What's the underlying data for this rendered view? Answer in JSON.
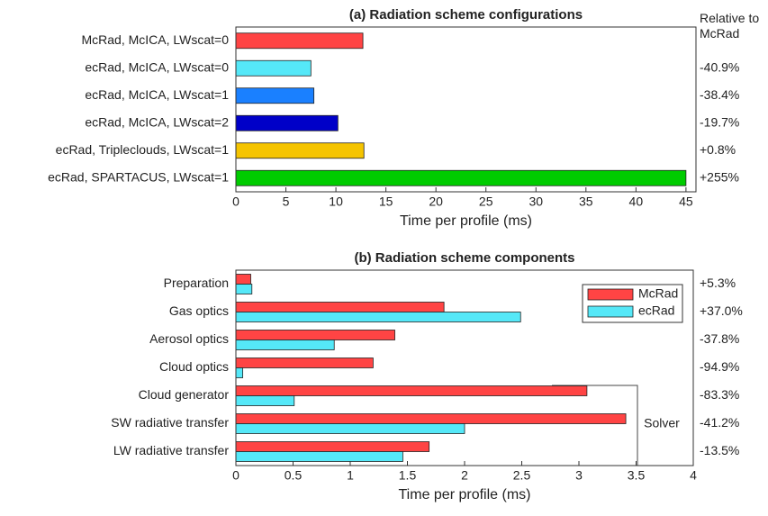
{
  "chart_data": [
    {
      "type": "barh",
      "title": "(a) Radiation scheme configurations",
      "xlabel": "Time per profile (ms)",
      "categories": [
        "McRad, McICA, LWscat=0",
        "ecRad, McICA, LWscat=0",
        "ecRad, McICA, LWscat=1",
        "ecRad, McICA, LWscat=2",
        "ecRad, Tripleclouds, LWscat=1",
        "ecRad, SPARTACUS, LWscat=1"
      ],
      "values": [
        12.7,
        7.5,
        7.8,
        10.2,
        12.8,
        45.0
      ],
      "colors": [
        "#ff4444",
        "#55e8f8",
        "#1a80ff",
        "#0000c8",
        "#f5c400",
        "#00cc00"
      ],
      "relative_header": "Relative to McRad",
      "relative_labels": [
        "-40.9%",
        "-38.4%",
        "-19.7%",
        "+0.8%",
        "+255%"
      ],
      "xlim": [
        0,
        46
      ],
      "xticks": [
        0,
        5,
        10,
        15,
        20,
        25,
        30,
        35,
        40,
        45
      ]
    },
    {
      "type": "barh_grouped",
      "title": "(b) Radiation scheme components",
      "xlabel": "Time per profile (ms)",
      "categories": [
        "Preparation",
        "Gas optics",
        "Aerosol optics",
        "Cloud optics",
        "Cloud generator",
        "SW radiative transfer",
        "LW radiative transfer"
      ],
      "series": [
        {
          "name": "McRad",
          "color": "#ff4444",
          "values": [
            0.13,
            1.82,
            1.39,
            1.2,
            3.07,
            3.41,
            1.69
          ]
        },
        {
          "name": "ecRad",
          "color": "#55e8f8",
          "values": [
            0.14,
            2.49,
            0.86,
            0.06,
            0.51,
            2.0,
            1.46
          ]
        }
      ],
      "relative_labels": [
        "+5.3%",
        "+37.0%",
        "-37.8%",
        "-94.9%",
        "-83.3%",
        "-41.2%",
        "-13.5%"
      ],
      "annotation": "Solver",
      "legend": "northeast",
      "xlim": [
        0,
        4
      ],
      "xticks": [
        0,
        0.5,
        1,
        1.5,
        2,
        2.5,
        3,
        3.5,
        4
      ]
    }
  ]
}
